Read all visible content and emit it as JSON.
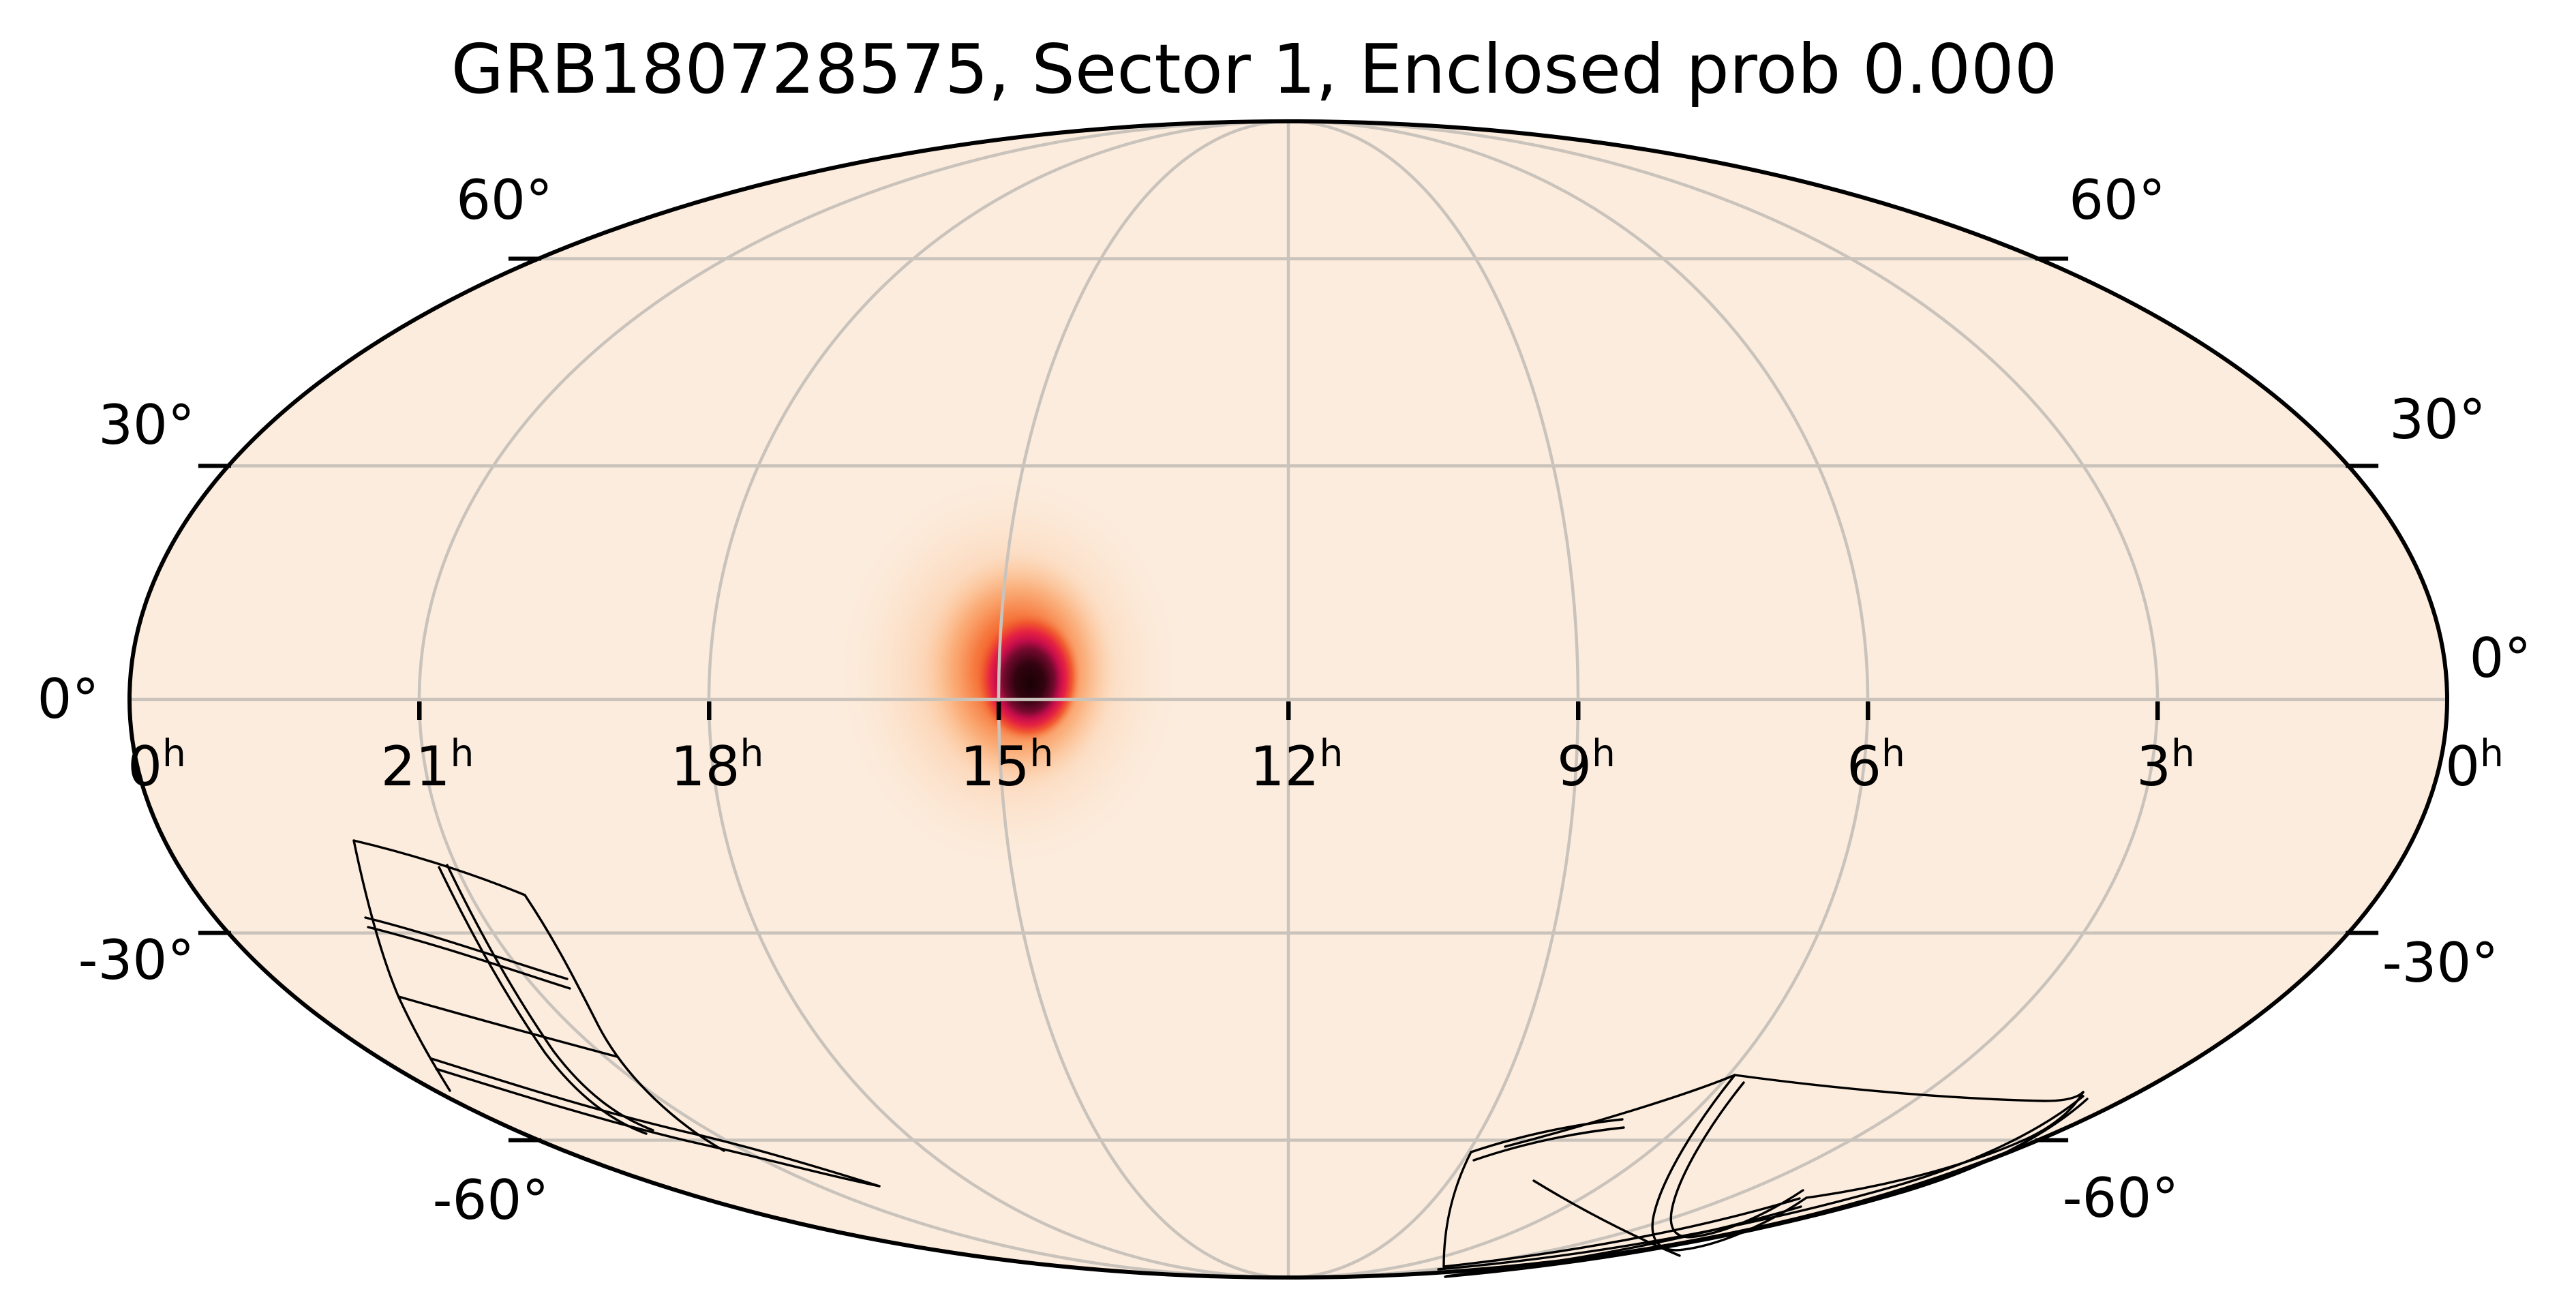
{
  "title": "GRB180728575, Sector 1, Enclosed prob 0.000",
  "chart_data": {
    "type": "skymap",
    "projection": "mollweide",
    "coordinate_frame": "equatorial (right ascension in hours, declination in degrees)",
    "title": "GRB180728575, Sector 1, Enclosed prob 0.000",
    "grb_name": "GRB180728575",
    "sector_label": "Sector 1",
    "enclosed_prob_label": "Enclosed prob 0.000",
    "enclosed_prob_value": "0.000",
    "grid": {
      "ra_step": "3h (45 deg)",
      "dec_step": "30 deg",
      "gridlines_on": true
    },
    "ra_axis": {
      "unit": "h",
      "ticks": [
        {
          "label": "0",
          "sup": "h"
        },
        {
          "label": "21",
          "sup": "h"
        },
        {
          "label": "18",
          "sup": "h"
        },
        {
          "label": "15",
          "sup": "h"
        },
        {
          "label": "12",
          "sup": "h"
        },
        {
          "label": "9",
          "sup": "h"
        },
        {
          "label": "6",
          "sup": "h"
        },
        {
          "label": "3",
          "sup": "h"
        },
        {
          "label": "0",
          "sup": "h"
        }
      ]
    },
    "dec_axis": {
      "unit": "degrees",
      "values": [
        60,
        30,
        0,
        -30,
        -60
      ],
      "labels_left": [
        "60°",
        "30°",
        "0°",
        "-30°",
        "-60°"
      ],
      "labels_right": [
        "60°",
        "30°",
        "0°",
        "-30°",
        "-60°"
      ]
    },
    "probability_map": {
      "description": "GRB localization probability density; single compact hotspot",
      "peak": {
        "ra_hours": 15.1,
        "dec_deg": 4
      },
      "colormap_low_to_high": [
        "#fcecdd",
        "#fcc99e",
        "#fb8d45",
        "#f4581e",
        "#e62341",
        "#c50d4b",
        "#740a2e",
        "#320310",
        "#190104"
      ]
    },
    "instrument_footprints": {
      "description": "TESS Sector 1 camera/CCD outline grids (black curvilinear lattices)",
      "southwest_strip": {
        "region": "around RA 20h-22h, Dec -15 to -65",
        "paths": [
          "M519,1233 C600,1252 690,1280 770,1313",
          "M519,1233 C535,1310 558,1400 585,1463 C608,1513 632,1555 660,1600",
          "M770,1313 C812,1376 840,1430 878,1505 C920,1585 995,1650 1062,1688",
          "M644,1272 C696,1380 748,1470 800,1545 C848,1608 896,1644 948,1663",
          "M656,1269 C708,1377 760,1467 812,1542 C858,1603 906,1638 958,1658",
          "M536,1346 C640,1372 740,1408 832,1436",
          "M540,1360 C644,1386 742,1420 836,1450",
          "M585,1462 C690,1492 800,1522 905,1550",
          "M633,1553 C750,1590 870,1628 1004,1660",
          "M640,1568 C756,1604 876,1642 1010,1674",
          "M1004,1660 C1100,1682 1200,1712 1290,1740",
          "M1010,1674 C1106,1695 1202,1722 1290,1740"
        ]
      },
      "south_strip": {
        "region": "around RA 4h-8h, Dec -55 to -75, strongly distorted near map edge",
        "paths": [
          "M2545,1577 C2470,1608 2330,1650 2208,1682",
          "M2158,1690 C2230,1666 2305,1650 2380,1642",
          "M2162,1702 C2232,1678 2307,1662 2382,1654",
          "M2158,1690 C2130,1745 2118,1800 2118,1858",
          "M2118,1858 C2300,1838 2480,1806 2640,1758",
          "M2122,1872 C2300,1852 2480,1818 2642,1770",
          "M2545,1577 C2490,1645 2435,1732 2425,1788 C2420,1822 2437,1838 2470,1833 C2530,1825 2602,1790 2650,1757",
          "M2558,1588 C2508,1650 2460,1728 2452,1778 C2448,1806 2461,1818 2487,1814 C2540,1806 2602,1775 2645,1746",
          "M2545,1577 C2700,1598 2860,1612 3000,1615 C3030,1615 3048,1610 3056,1602",
          "M2650,1757 C2760,1742 2880,1712 2970,1672 C3010,1654 3040,1630 3056,1602",
          "M2110,1862 C2340,1842 2570,1800 2780,1740 C2890,1708 2990,1662 3056,1608",
          "M2120,1873 C2355,1852 2585,1810 2795,1748 C2902,1716 3000,1668 3062,1612",
          "M2250,1732 C2322,1776 2392,1812 2464,1842"
        ]
      }
    }
  },
  "colors": {
    "page_background": "#ffffff",
    "map_fill": "#fcecdd",
    "grid_line": "#c9c3bc",
    "map_outline": "#000000",
    "footprint_line": "#000000",
    "text": "#000000",
    "blob_halo": "#fb8d45",
    "blob_mid": "#f4581e",
    "blob_ring": "#c50d4b",
    "blob_core": "#190104"
  }
}
